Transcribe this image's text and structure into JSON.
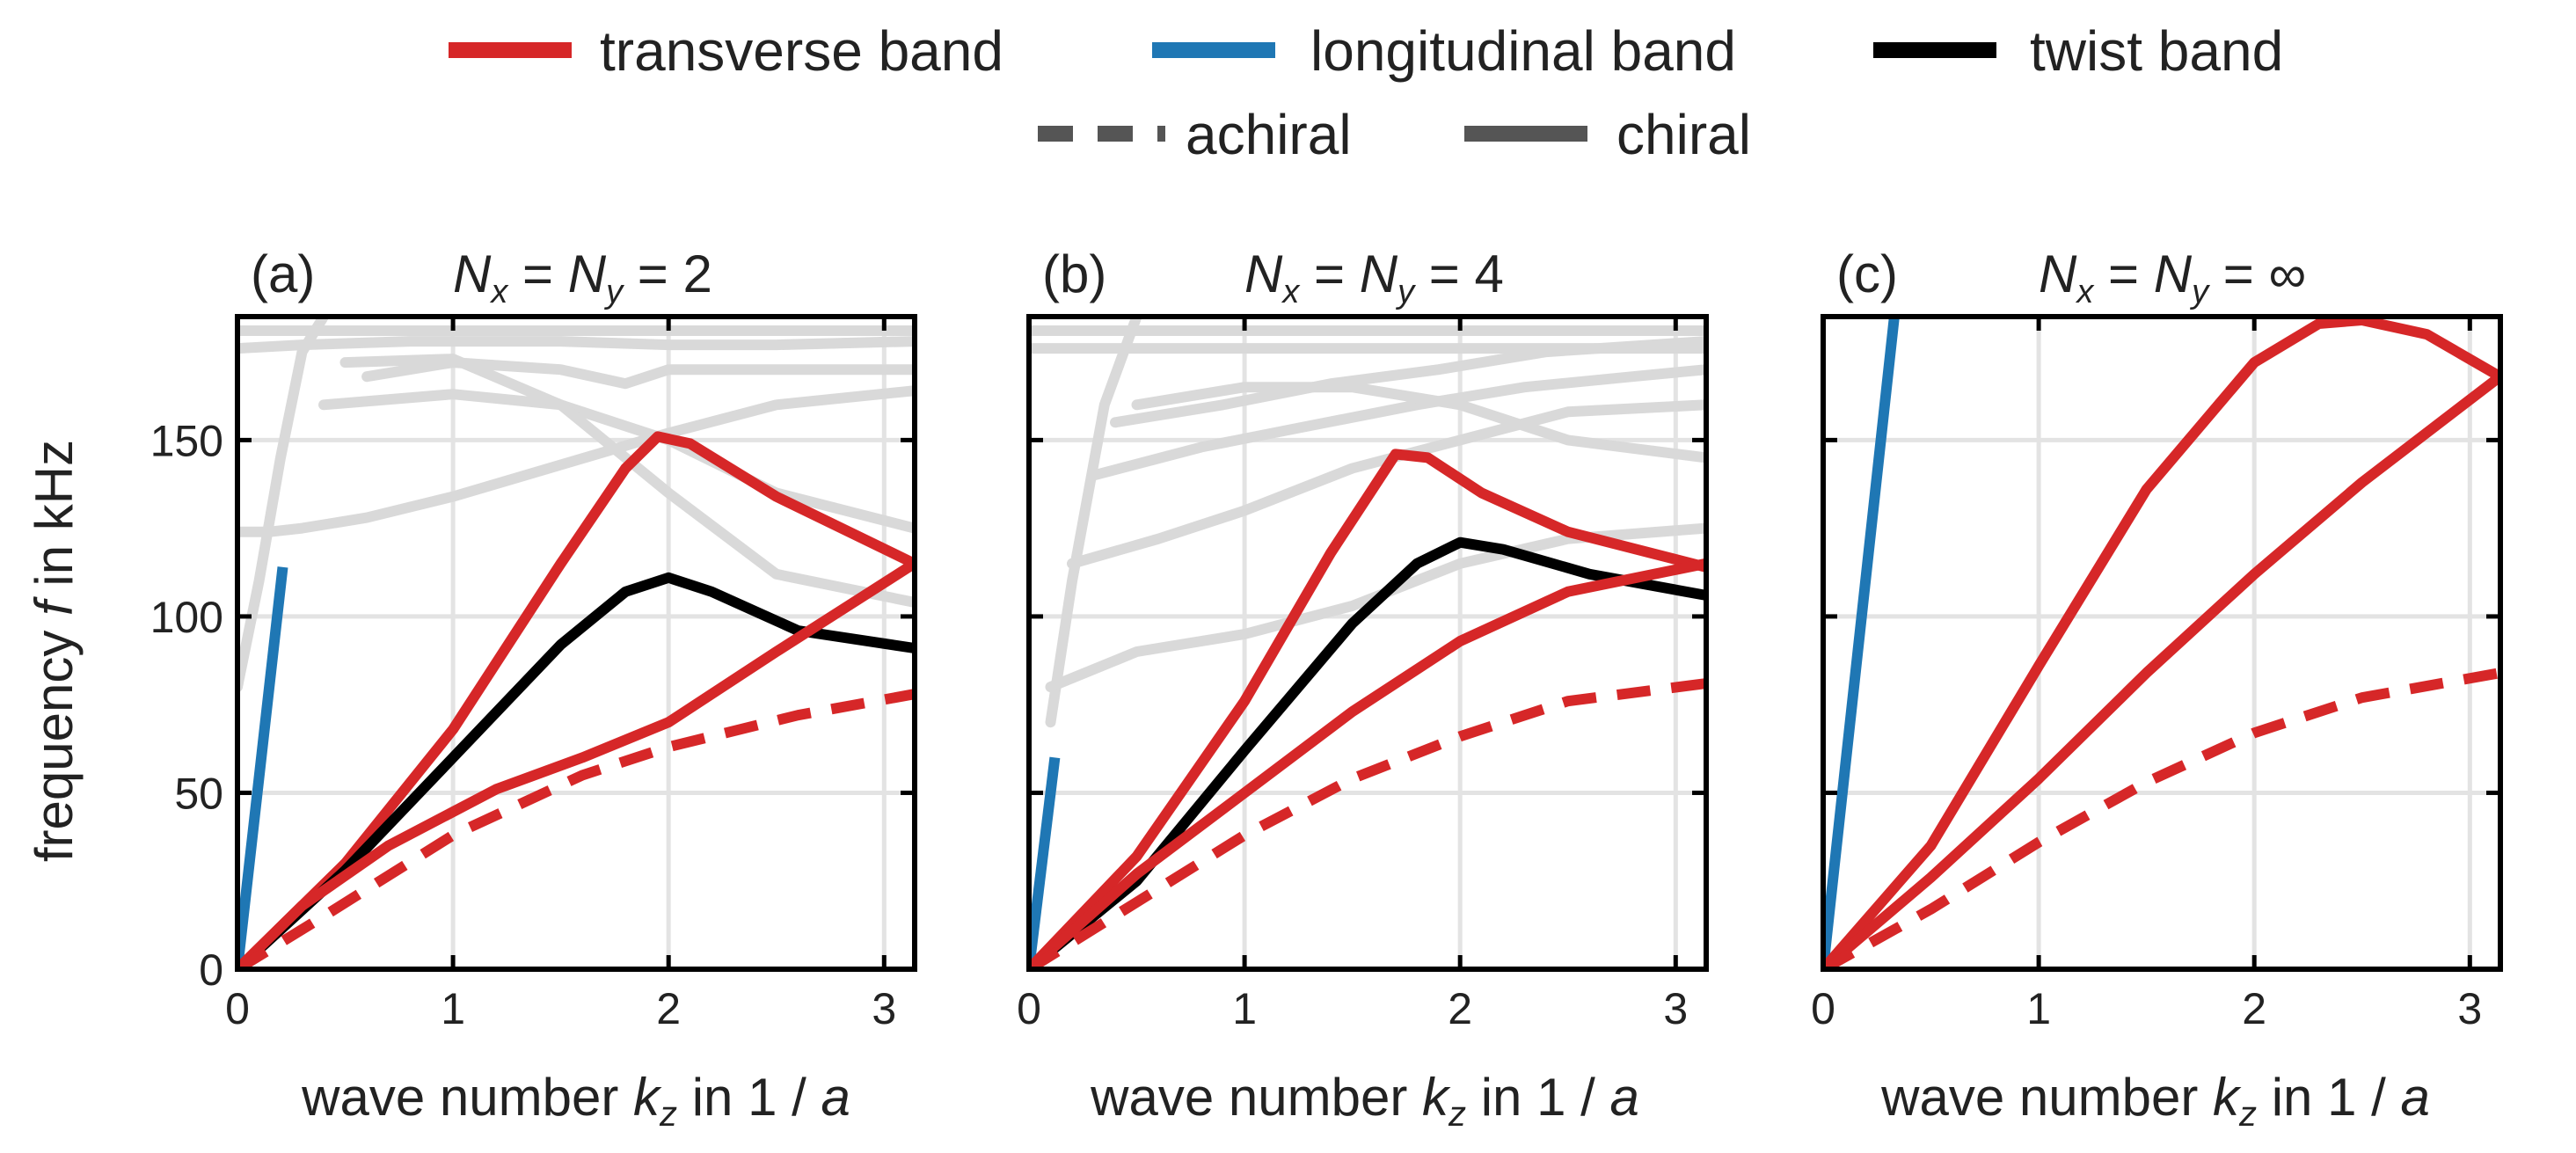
{
  "colors": {
    "transverse": "#d62728",
    "longitudinal": "#1f77b4",
    "twist": "#000000",
    "style_key": "#555555",
    "other_bands": "#d9d9d9",
    "grid": "#e3e3e3"
  },
  "legend": {
    "transverse": "transverse band",
    "longitudinal": "longitudinal band",
    "twist": "twist band",
    "achiral": "achiral",
    "chiral": "chiral"
  },
  "axes": {
    "xlabel_pre": "wave number ",
    "xlabel_var": "k",
    "xlabel_sub": "z",
    "xlabel_post": " in  1 / ",
    "xlabel_unit": "a",
    "ylabel_pre": "frequency ",
    "ylabel_var": "f",
    "ylabel_post": " in kHz"
  },
  "chart_data": [
    {
      "type": "line",
      "label": "(a)",
      "title_value": "2",
      "xlim": [
        0,
        3.14159
      ],
      "ylim": [
        0,
        185
      ],
      "xticks": [
        0,
        1,
        2,
        3
      ],
      "yticks": [
        0,
        50,
        100,
        150
      ],
      "grid": true,
      "other_bands": [
        {
          "x": [
            0,
            0.1,
            0.2,
            0.3,
            0.4
          ],
          "y": [
            80,
            110,
            145,
            175,
            185
          ]
        },
        {
          "x": [
            0,
            0.15,
            0.3,
            0.6,
            1.0,
            1.5,
            2.0,
            2.5,
            3.14
          ],
          "y": [
            124,
            124,
            125,
            128,
            134,
            143,
            152,
            160,
            164
          ]
        },
        {
          "x": [
            0.4,
            1.0,
            1.5,
            2.0,
            2.5,
            3.14
          ],
          "y": [
            160,
            163,
            160,
            150,
            135,
            125
          ]
        },
        {
          "x": [
            0.5,
            1.0,
            1.5,
            2.0,
            2.5,
            3.14
          ],
          "y": [
            172,
            173,
            160,
            135,
            112,
            104
          ]
        },
        {
          "x": [
            0.6,
            1.0,
            1.5,
            1.8,
            2.0,
            2.5,
            3.14
          ],
          "y": [
            168,
            172,
            170,
            166,
            170,
            170,
            170
          ]
        },
        {
          "x": [
            0.0,
            0.3,
            0.8,
            1.5,
            2.0,
            2.5,
            3.14
          ],
          "y": [
            176,
            177,
            178,
            178,
            177,
            177,
            178
          ]
        },
        {
          "x": [
            0.0,
            0.5,
            1.0,
            2.0,
            3.14
          ],
          "y": [
            181,
            181,
            181,
            181,
            181
          ]
        }
      ],
      "series": [
        {
          "name": "longitudinal band",
          "band": "longitudinal",
          "style": "chiral",
          "x": [
            0,
            0.21
          ],
          "y": [
            0,
            114
          ]
        },
        {
          "name": "transverse band",
          "band": "transverse",
          "style": "chiral",
          "x": [
            0,
            0.5,
            1.0,
            1.5,
            1.8,
            1.95,
            2.1,
            2.5,
            3.14
          ],
          "y": [
            0,
            30,
            68,
            115,
            142,
            151,
            149,
            134,
            115
          ]
        },
        {
          "name": "twist band",
          "band": "twist",
          "style": "chiral",
          "x": [
            0,
            0.5,
            1.0,
            1.5,
            1.8,
            2.0,
            2.2,
            2.6,
            3.14
          ],
          "y": [
            0,
            28,
            60,
            92,
            107,
            111,
            107,
            96,
            91
          ]
        },
        {
          "name": "transverse band",
          "band": "transverse",
          "style": "chiral",
          "x": [
            0,
            0.3,
            0.7,
            1.2,
            1.6,
            2.0,
            2.5,
            3.14
          ],
          "y": [
            0,
            18,
            35,
            51,
            60,
            70,
            90,
            115
          ]
        },
        {
          "name": "transverse band",
          "band": "transverse",
          "style": "achiral",
          "x": [
            0,
            0.4,
            1.0,
            1.6,
            2.0,
            2.6,
            3.14
          ],
          "y": [
            0,
            15,
            38,
            55,
            63,
            72,
            78
          ]
        }
      ]
    },
    {
      "type": "line",
      "label": "(b)",
      "title_value": "4",
      "xlim": [
        0,
        3.14159
      ],
      "ylim": [
        0,
        185
      ],
      "xticks": [
        0,
        1,
        2,
        3
      ],
      "yticks": [
        0,
        50,
        100,
        150
      ],
      "grid": true,
      "other_bands": [
        {
          "x": [
            0.1,
            0.2,
            0.35,
            0.5
          ],
          "y": [
            70,
            110,
            160,
            185
          ]
        },
        {
          "x": [
            0.1,
            0.5,
            1.0,
            1.5,
            2.0,
            2.5,
            3.14
          ],
          "y": [
            80,
            90,
            95,
            103,
            115,
            122,
            125
          ]
        },
        {
          "x": [
            0.2,
            0.6,
            1.0,
            1.5,
            2.0,
            2.5,
            3.14
          ],
          "y": [
            115,
            122,
            130,
            142,
            150,
            158,
            160
          ]
        },
        {
          "x": [
            0.3,
            0.8,
            1.3,
            1.8,
            2.3,
            2.8,
            3.14
          ],
          "y": [
            140,
            148,
            154,
            160,
            165,
            168,
            170
          ]
        },
        {
          "x": [
            0.4,
            0.9,
            1.4,
            1.9,
            2.4,
            3.14
          ],
          "y": [
            155,
            160,
            166,
            170,
            175,
            178
          ]
        },
        {
          "x": [
            0.5,
            1.0,
            1.5,
            2.0,
            2.5,
            3.14
          ],
          "y": [
            160,
            165,
            165,
            160,
            150,
            145
          ]
        },
        {
          "x": [
            0.0,
            1.0,
            2.0,
            3.14
          ],
          "y": [
            176,
            176,
            176,
            176
          ]
        },
        {
          "x": [
            0.0,
            1.0,
            2.0,
            3.14
          ],
          "y": [
            181,
            181,
            181,
            181
          ]
        }
      ],
      "series": [
        {
          "name": "longitudinal band",
          "band": "longitudinal",
          "style": "chiral",
          "x": [
            0,
            0.12
          ],
          "y": [
            0,
            60
          ]
        },
        {
          "name": "transverse band",
          "band": "transverse",
          "style": "chiral",
          "x": [
            0,
            0.5,
            1.0,
            1.4,
            1.7,
            1.85,
            2.1,
            2.5,
            3.14
          ],
          "y": [
            0,
            32,
            76,
            118,
            146,
            145,
            135,
            124,
            114
          ]
        },
        {
          "name": "twist band",
          "band": "twist",
          "style": "chiral",
          "x": [
            0,
            0.5,
            1.0,
            1.5,
            1.8,
            2.0,
            2.2,
            2.6,
            3.14
          ],
          "y": [
            0,
            25,
            62,
            98,
            115,
            121,
            119,
            112,
            106
          ]
        },
        {
          "name": "transverse band",
          "band": "transverse",
          "style": "chiral",
          "x": [
            0,
            0.5,
            1.0,
            1.5,
            2.0,
            2.5,
            3.14
          ],
          "y": [
            0,
            27,
            50,
            73,
            93,
            107,
            115
          ]
        },
        {
          "name": "transverse band",
          "band": "transverse",
          "style": "achiral",
          "x": [
            0,
            0.5,
            1.0,
            1.5,
            2.0,
            2.5,
            3.14
          ],
          "y": [
            0,
            19,
            38,
            54,
            66,
            76,
            81
          ]
        }
      ]
    },
    {
      "type": "line",
      "label": "(c)",
      "title_value": "∞",
      "xlim": [
        0,
        3.14159
      ],
      "ylim": [
        0,
        185
      ],
      "xticks": [
        0,
        1,
        2,
        3
      ],
      "yticks": [
        0,
        50,
        100,
        150
      ],
      "grid": true,
      "other_bands": [],
      "series": [
        {
          "name": "longitudinal band",
          "band": "longitudinal",
          "style": "chiral",
          "x": [
            0,
            0.33
          ],
          "y": [
            0,
            185
          ]
        },
        {
          "name": "transverse band",
          "band": "transverse",
          "style": "chiral",
          "x": [
            0,
            0.5,
            1.0,
            1.5,
            2.0,
            2.3,
            2.5,
            2.8,
            3.14
          ],
          "y": [
            0,
            35,
            86,
            136,
            172,
            183,
            184,
            180,
            168
          ]
        },
        {
          "name": "transverse band",
          "band": "transverse",
          "style": "chiral",
          "x": [
            0,
            0.5,
            1.0,
            1.5,
            2.0,
            2.5,
            3.14
          ],
          "y": [
            0,
            26,
            54,
            84,
            112,
            138,
            168
          ]
        },
        {
          "name": "transverse band",
          "band": "transverse",
          "style": "achiral",
          "x": [
            0,
            0.5,
            1.0,
            1.5,
            2.0,
            2.5,
            3.14
          ],
          "y": [
            0,
            17,
            36,
            53,
            67,
            77,
            84
          ]
        }
      ]
    }
  ]
}
